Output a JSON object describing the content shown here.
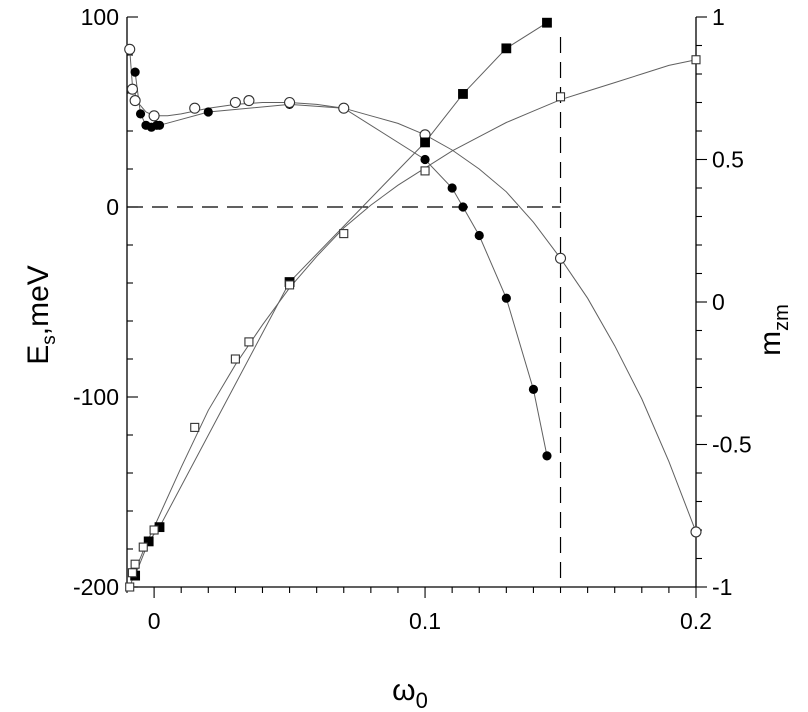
{
  "chart_data": {
    "type": "scatter",
    "x_axis": {
      "label": "ω0",
      "range": [
        -0.01,
        0.2
      ],
      "ticks": [
        0,
        0.1,
        0.2
      ],
      "tick_labels": [
        "0",
        "0.1",
        "0.2"
      ],
      "minor_step": 0.01
    },
    "y_left": {
      "label": "Es,meV",
      "range": [
        -200,
        100
      ],
      "ticks": [
        100,
        0,
        -100,
        -200
      ],
      "tick_labels": [
        "100",
        "0",
        "-100",
        "-200"
      ],
      "minor_step": 20
    },
    "y_right": {
      "label": "mzm",
      "range": [
        -1,
        1
      ],
      "ticks": [
        1,
        0.5,
        0,
        -0.5,
        -1
      ],
      "tick_labels": [
        "1",
        "0.5",
        "0",
        "-0.5",
        "-1"
      ],
      "minor_step": 0.1
    },
    "reference_lines": [
      {
        "orientation": "horizontal",
        "axis": "left",
        "y": 0,
        "x_range": [
          -0.01,
          0.15
        ],
        "style": "dashed"
      },
      {
        "orientation": "vertical",
        "x": 0.15,
        "style": "dashed"
      }
    ],
    "grid": false,
    "series": [
      {
        "axis": "left",
        "marker": "filled-circle",
        "points": [
          [
            -0.007,
            71
          ],
          [
            -0.005,
            49
          ],
          [
            -0.003,
            43
          ],
          [
            -0.001,
            42
          ],
          [
            0.001,
            43
          ],
          [
            0.002,
            43
          ],
          [
            0.02,
            50
          ],
          [
            0.05,
            54
          ],
          [
            0.07,
            52
          ],
          [
            0.1,
            25
          ],
          [
            0.11,
            10
          ],
          [
            0.114,
            0
          ],
          [
            0.12,
            -15
          ],
          [
            0.13,
            -48
          ],
          [
            0.14,
            -96
          ],
          [
            0.145,
            -131
          ]
        ]
      },
      {
        "axis": "left",
        "marker": "open-circle",
        "points": [
          [
            -0.009,
            83
          ],
          [
            -0.008,
            62
          ],
          [
            -0.007,
            56
          ],
          [
            0,
            48
          ],
          [
            0.015,
            52
          ],
          [
            0.03,
            55
          ],
          [
            0.035,
            56
          ],
          [
            0.05,
            55
          ],
          [
            0.07,
            52
          ],
          [
            0.1,
            38
          ],
          [
            0.15,
            -27
          ],
          [
            0.2,
            -171
          ]
        ],
        "curve": [
          [
            -0.009,
            83
          ],
          [
            -0.008,
            64
          ],
          [
            -0.006,
            55
          ],
          [
            -0.003,
            50
          ],
          [
            0,
            48
          ],
          [
            0.005,
            48
          ],
          [
            0.01,
            49
          ],
          [
            0.02,
            52
          ],
          [
            0.03,
            54
          ],
          [
            0.04,
            55
          ],
          [
            0.05,
            55
          ],
          [
            0.06,
            54
          ],
          [
            0.07,
            52
          ],
          [
            0.08,
            48
          ],
          [
            0.09,
            44
          ],
          [
            0.1,
            38
          ],
          [
            0.11,
            30
          ],
          [
            0.12,
            20
          ],
          [
            0.13,
            8
          ],
          [
            0.14,
            -8
          ],
          [
            0.15,
            -27
          ],
          [
            0.16,
            -48
          ],
          [
            0.17,
            -73
          ],
          [
            0.18,
            -101
          ],
          [
            0.19,
            -134
          ],
          [
            0.2,
            -171
          ]
        ]
      },
      {
        "axis": "right",
        "marker": "filled-square",
        "points": [
          [
            -0.007,
            -0.96
          ],
          [
            -0.002,
            -0.84
          ],
          [
            0.002,
            -0.79
          ],
          [
            0.05,
            0.07
          ],
          [
            0.1,
            0.56
          ],
          [
            0.114,
            0.73
          ],
          [
            0.13,
            0.89
          ],
          [
            0.145,
            0.98
          ]
        ]
      },
      {
        "axis": "right",
        "marker": "open-square",
        "points": [
          [
            -0.009,
            -1.0
          ],
          [
            -0.008,
            -0.95
          ],
          [
            -0.007,
            -0.92
          ],
          [
            -0.004,
            -0.86
          ],
          [
            0,
            -0.8
          ],
          [
            0.015,
            -0.44
          ],
          [
            0.03,
            -0.2
          ],
          [
            0.035,
            -0.14
          ],
          [
            0.05,
            0.06
          ],
          [
            0.07,
            0.24
          ],
          [
            0.1,
            0.46
          ],
          [
            0.15,
            0.72
          ],
          [
            0.2,
            0.85
          ]
        ],
        "curve": [
          [
            -0.009,
            -1.0
          ],
          [
            -0.006,
            -0.92
          ],
          [
            -0.003,
            -0.85
          ],
          [
            0,
            -0.79
          ],
          [
            0.01,
            -0.58
          ],
          [
            0.02,
            -0.38
          ],
          [
            0.03,
            -0.22
          ],
          [
            0.04,
            -0.08
          ],
          [
            0.05,
            0.05
          ],
          [
            0.06,
            0.16
          ],
          [
            0.07,
            0.26
          ],
          [
            0.08,
            0.34
          ],
          [
            0.09,
            0.41
          ],
          [
            0.1,
            0.47
          ],
          [
            0.11,
            0.53
          ],
          [
            0.12,
            0.58
          ],
          [
            0.13,
            0.63
          ],
          [
            0.14,
            0.67
          ],
          [
            0.15,
            0.71
          ],
          [
            0.16,
            0.74
          ],
          [
            0.17,
            0.77
          ],
          [
            0.18,
            0.8
          ],
          [
            0.19,
            0.83
          ],
          [
            0.2,
            0.85
          ]
        ]
      }
    ]
  }
}
